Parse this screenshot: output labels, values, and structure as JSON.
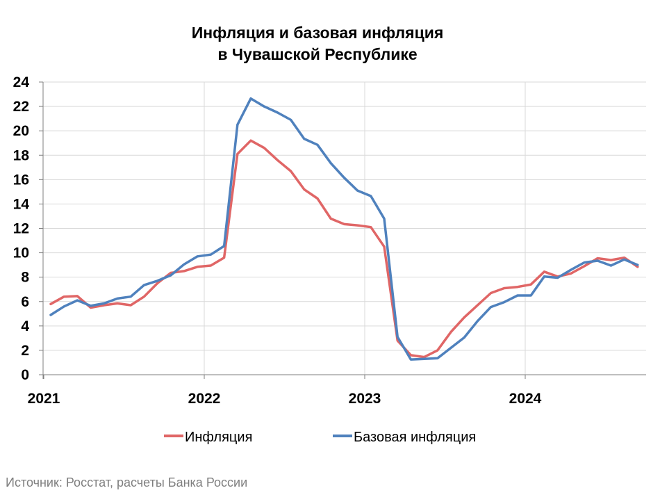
{
  "chart_data": {
    "type": "line",
    "title_line1": "Инфляция и базовая инфляция",
    "title_line2": "в Чувашской Республике",
    "xlabel": "",
    "ylabel": "",
    "ylim": [
      0,
      24
    ],
    "y_ticks": [
      "0",
      "2",
      "4",
      "6",
      "8",
      "10",
      "12",
      "14",
      "16",
      "18",
      "20",
      "22",
      "24"
    ],
    "x_ticks": [
      "2021",
      "2022",
      "2023",
      "2024"
    ],
    "grid": true,
    "legend_position": "bottom",
    "x": [
      "2021-01",
      "2021-02",
      "2021-03",
      "2021-04",
      "2021-05",
      "2021-06",
      "2021-07",
      "2021-08",
      "2021-09",
      "2021-10",
      "2021-11",
      "2021-12",
      "2022-01",
      "2022-02",
      "2022-03",
      "2022-04",
      "2022-05",
      "2022-06",
      "2022-07",
      "2022-08",
      "2022-09",
      "2022-10",
      "2022-11",
      "2022-12",
      "2023-01",
      "2023-02",
      "2023-03",
      "2023-04",
      "2023-05",
      "2023-06",
      "2023-07",
      "2023-08",
      "2023-09",
      "2023-10",
      "2023-11",
      "2023-12",
      "2024-01",
      "2024-02",
      "2024-03",
      "2024-04",
      "2024-05",
      "2024-06",
      "2024-07",
      "2024-08",
      "2024-09"
    ],
    "series": [
      {
        "name": "Инфляция",
        "color": "#e06666",
        "values": [
          5.8,
          6.4,
          6.45,
          5.5,
          5.7,
          5.85,
          5.7,
          6.4,
          7.5,
          8.35,
          8.5,
          8.85,
          8.95,
          9.6,
          18.1,
          19.2,
          18.6,
          17.6,
          16.7,
          15.2,
          14.45,
          12.8,
          12.35,
          12.25,
          12.1,
          10.5,
          2.8,
          1.6,
          1.45,
          2.0,
          3.5,
          4.7,
          5.7,
          6.7,
          7.1,
          7.2,
          7.4,
          8.45,
          8.05,
          8.3,
          8.9,
          9.55,
          9.4,
          9.6,
          8.85
        ]
      },
      {
        "name": "Базовая инфляция",
        "color": "#4f81bd",
        "values": [
          4.9,
          5.6,
          6.1,
          5.65,
          5.85,
          6.25,
          6.4,
          7.35,
          7.7,
          8.15,
          9.05,
          9.7,
          9.85,
          10.55,
          20.5,
          22.65,
          22.0,
          21.5,
          20.9,
          19.35,
          18.85,
          17.35,
          16.15,
          15.1,
          14.65,
          12.8,
          3.1,
          1.25,
          1.3,
          1.35,
          2.2,
          3.05,
          4.4,
          5.55,
          5.95,
          6.5,
          6.5,
          8.05,
          7.95,
          8.6,
          9.2,
          9.35,
          8.95,
          9.45,
          9.0
        ]
      }
    ]
  },
  "source": "Источник: Росстат, расчеты Банка России"
}
